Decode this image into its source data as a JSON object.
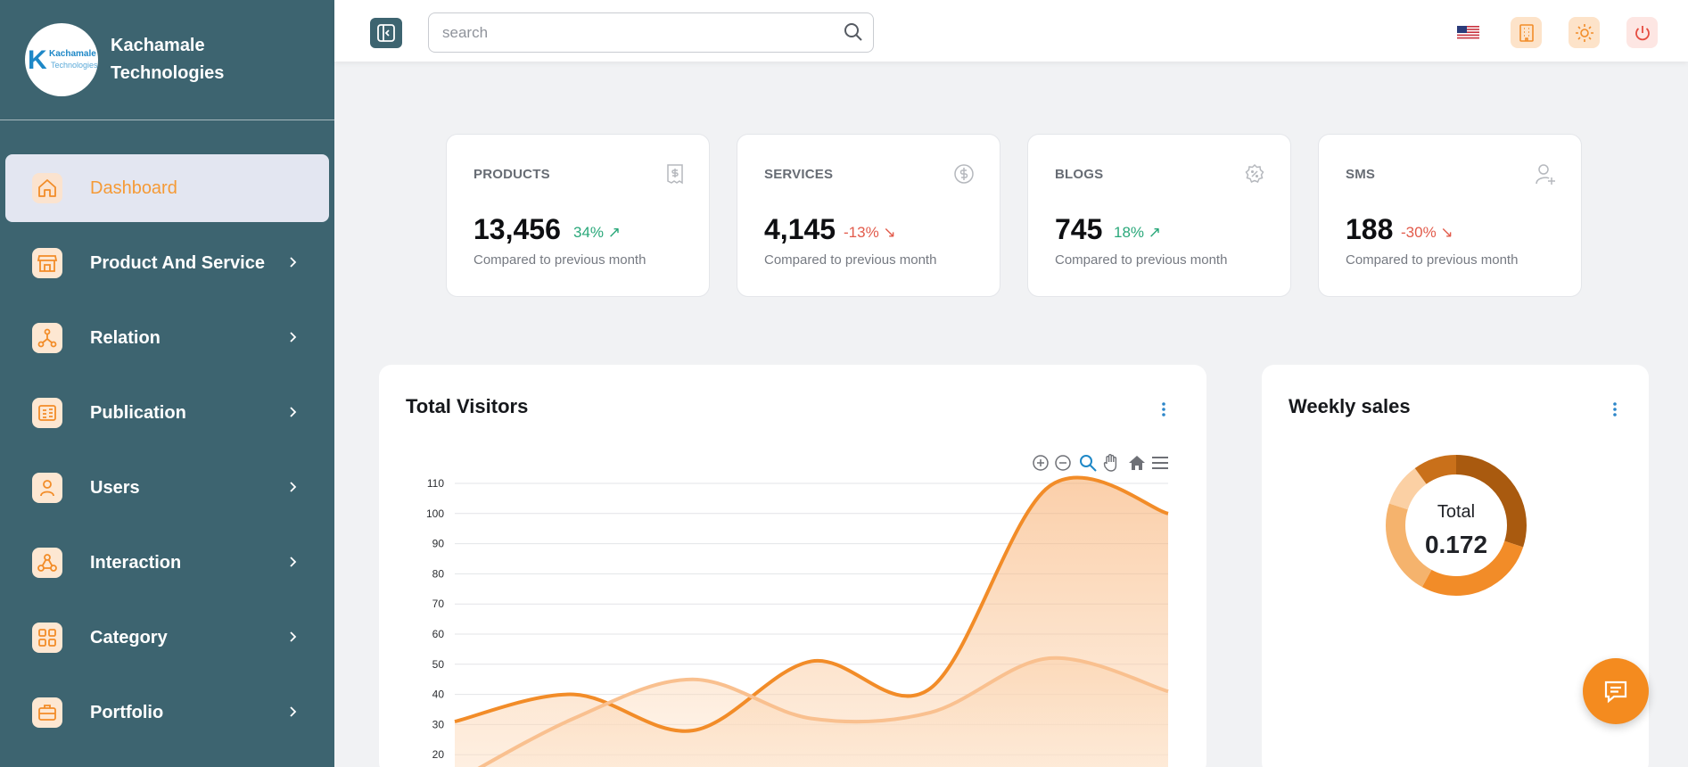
{
  "brand": {
    "line1": "Kachamale",
    "line2": "Technologies",
    "logo_line1": "Kachamale",
    "logo_line2": "Technologies"
  },
  "sidebar": {
    "items": [
      {
        "label": "Dashboard",
        "icon": "home-icon",
        "active": true
      },
      {
        "label": "Product And Service",
        "icon": "store-icon"
      },
      {
        "label": "Relation",
        "icon": "share-nodes-icon"
      },
      {
        "label": "Publication",
        "icon": "document-icon"
      },
      {
        "label": "Users",
        "icon": "user-icon"
      },
      {
        "label": "Interaction",
        "icon": "webhook-icon"
      },
      {
        "label": "Category",
        "icon": "grid-icon"
      },
      {
        "label": "Portfolio",
        "icon": "briefcase-icon"
      }
    ]
  },
  "topbar": {
    "search_placeholder": "search"
  },
  "stats": [
    {
      "title": "PRODUCTS",
      "value": "13,456",
      "change": "34%",
      "direction": "up",
      "note": "Compared to previous month",
      "icon": "receipt-icon"
    },
    {
      "title": "SERVICES",
      "value": "4,145",
      "change": "-13%",
      "direction": "down",
      "note": "Compared to previous month",
      "icon": "dollar-circle-icon"
    },
    {
      "title": "BLOGS",
      "value": "745",
      "change": "18%",
      "direction": "up",
      "note": "Compared to previous month",
      "icon": "badge-percent-icon"
    },
    {
      "title": "SMS",
      "value": "188",
      "change": "-30%",
      "direction": "down",
      "note": "Compared to previous month",
      "icon": "user-plus-icon"
    }
  ],
  "visitors": {
    "title": "Total Visitors",
    "chart_data": {
      "type": "area",
      "title": "Total Visitors",
      "x": [
        0,
        1,
        2,
        3,
        4,
        5,
        6
      ],
      "y_ticks": [
        20,
        30,
        40,
        50,
        60,
        70,
        80,
        90,
        100,
        110
      ],
      "ylim": [
        20,
        110
      ],
      "grid": true,
      "series": [
        {
          "values": [
            31,
            40,
            28,
            51,
            42,
            109,
            100
          ],
          "color": "#f28c28"
        },
        {
          "values": [
            11,
            32,
            45,
            32,
            34,
            52,
            41
          ],
          "color": "#f9c08f"
        }
      ]
    }
  },
  "weekly": {
    "title": "Weekly sales",
    "total_label": "Total",
    "total_value": "0.172",
    "chart_data": {
      "type": "pie",
      "slices": [
        {
          "value": 30,
          "color": "#a95a0f"
        },
        {
          "value": 28,
          "color": "#f28c28"
        },
        {
          "value": 22,
          "color": "#f5b36d"
        },
        {
          "value": 10,
          "color": "#fbd0a4"
        },
        {
          "value": 10,
          "color": "#c9701a"
        }
      ]
    }
  },
  "colors": {
    "sidebar": "#3d6470",
    "accent": "#f28c28",
    "up": "#2aa87a",
    "down": "#e25b4b"
  }
}
